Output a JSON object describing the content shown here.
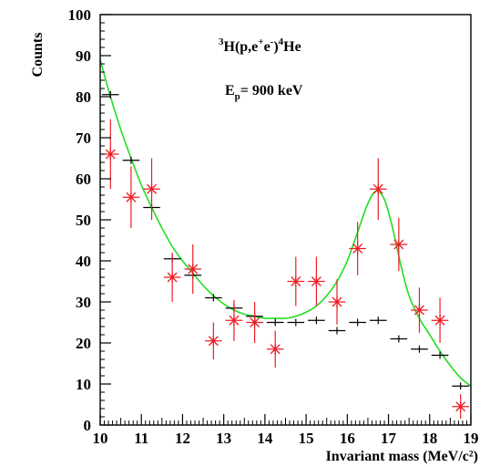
{
  "chart_data": {
    "type": "scatter",
    "title": "",
    "xlabel": "Invariant mass (MeV/c²)",
    "ylabel": "Counts",
    "xlim": [
      10,
      19
    ],
    "ylim": [
      0,
      100
    ],
    "x_ticks": [
      "10",
      "11",
      "12",
      "13",
      "14",
      "15",
      "16",
      "17",
      "18",
      "19"
    ],
    "y_ticks": [
      "0",
      "10",
      "20",
      "30",
      "40",
      "50",
      "60",
      "70",
      "80",
      "90",
      "100"
    ],
    "grid": false,
    "legend": null,
    "annotations": {
      "reaction": {
        "pre_sup": "3",
        "main": "H(p,e",
        "sup1": "+",
        "mid": "e",
        "sup2": "-",
        "close": ")",
        "sup3": "4",
        "tail": "He"
      },
      "energy": {
        "main": "E",
        "sub": "p",
        "tail": "= 900 keV"
      }
    },
    "series": [
      {
        "style": "black-cross",
        "color": "#000000",
        "bin_half_width": 0.25,
        "points": [
          {
            "x": 10.25,
            "y": 80.5
          },
          {
            "x": 10.75,
            "y": 64.5
          },
          {
            "x": 11.25,
            "y": 53
          },
          {
            "x": 11.75,
            "y": 40.5
          },
          {
            "x": 12.25,
            "y": 36.5
          },
          {
            "x": 12.75,
            "y": 31
          },
          {
            "x": 13.25,
            "y": 28.5
          },
          {
            "x": 13.75,
            "y": 26.5
          },
          {
            "x": 14.25,
            "y": 25
          },
          {
            "x": 14.75,
            "y": 25
          },
          {
            "x": 15.25,
            "y": 25.5
          },
          {
            "x": 15.75,
            "y": 23
          },
          {
            "x": 16.25,
            "y": 25
          },
          {
            "x": 16.75,
            "y": 25.5
          },
          {
            "x": 17.25,
            "y": 21
          },
          {
            "x": 17.75,
            "y": 18.5
          },
          {
            "x": 18.25,
            "y": 17
          },
          {
            "x": 18.75,
            "y": 9.5
          }
        ]
      },
      {
        "style": "red-star",
        "color": "#ee1c25",
        "bin_half_width": 0.25,
        "points": [
          {
            "x": 10.25,
            "y": 66,
            "err": 8.5
          },
          {
            "x": 10.75,
            "y": 55.5,
            "err": 7.5
          },
          {
            "x": 11.25,
            "y": 57.5,
            "err": 7.5
          },
          {
            "x": 11.75,
            "y": 36,
            "err": 6
          },
          {
            "x": 12.25,
            "y": 38,
            "err": 6
          },
          {
            "x": 12.75,
            "y": 20.5,
            "err": 4.5
          },
          {
            "x": 13.25,
            "y": 25.5,
            "err": 5
          },
          {
            "x": 13.75,
            "y": 25,
            "err": 5
          },
          {
            "x": 14.25,
            "y": 18.5,
            "err": 4.5
          },
          {
            "x": 14.75,
            "y": 35,
            "err": 6
          },
          {
            "x": 15.25,
            "y": 35,
            "err": 6
          },
          {
            "x": 15.75,
            "y": 30,
            "err": 5.5
          },
          {
            "x": 16.25,
            "y": 43,
            "err": 6.5
          },
          {
            "x": 16.75,
            "y": 57.5,
            "err": 7.5
          },
          {
            "x": 17.25,
            "y": 44,
            "err": 6.5
          },
          {
            "x": 17.75,
            "y": 28,
            "err": 5.5
          },
          {
            "x": 18.25,
            "y": 25.5,
            "err": 5.5
          },
          {
            "x": 18.75,
            "y": 4.5,
            "err": 3
          }
        ]
      },
      {
        "style": "fit-line",
        "color": "#22dd22",
        "points": [
          {
            "x": 10.0,
            "y": 89
          },
          {
            "x": 10.25,
            "y": 80
          },
          {
            "x": 10.5,
            "y": 72
          },
          {
            "x": 10.75,
            "y": 65
          },
          {
            "x": 11.0,
            "y": 58.5
          },
          {
            "x": 11.25,
            "y": 53
          },
          {
            "x": 11.5,
            "y": 48
          },
          {
            "x": 11.75,
            "y": 43.5
          },
          {
            "x": 12.0,
            "y": 40
          },
          {
            "x": 12.25,
            "y": 37
          },
          {
            "x": 12.5,
            "y": 34
          },
          {
            "x": 12.75,
            "y": 31.5
          },
          {
            "x": 13.0,
            "y": 29.5
          },
          {
            "x": 13.25,
            "y": 28
          },
          {
            "x": 13.5,
            "y": 27
          },
          {
            "x": 13.75,
            "y": 26.5
          },
          {
            "x": 14.0,
            "y": 26
          },
          {
            "x": 14.25,
            "y": 26
          },
          {
            "x": 14.5,
            "y": 26
          },
          {
            "x": 14.75,
            "y": 26.5
          },
          {
            "x": 15.0,
            "y": 27.5
          },
          {
            "x": 15.25,
            "y": 29
          },
          {
            "x": 15.5,
            "y": 31.5
          },
          {
            "x": 15.75,
            "y": 35
          },
          {
            "x": 16.0,
            "y": 40
          },
          {
            "x": 16.25,
            "y": 47
          },
          {
            "x": 16.5,
            "y": 54
          },
          {
            "x": 16.7,
            "y": 57
          },
          {
            "x": 16.9,
            "y": 55
          },
          {
            "x": 17.1,
            "y": 48
          },
          {
            "x": 17.3,
            "y": 39
          },
          {
            "x": 17.5,
            "y": 31.5
          },
          {
            "x": 17.75,
            "y": 26
          },
          {
            "x": 18.0,
            "y": 22
          },
          {
            "x": 18.25,
            "y": 18
          },
          {
            "x": 18.5,
            "y": 14.5
          },
          {
            "x": 18.75,
            "y": 11.5
          },
          {
            "x": 19.0,
            "y": 9.5
          }
        ]
      }
    ]
  }
}
